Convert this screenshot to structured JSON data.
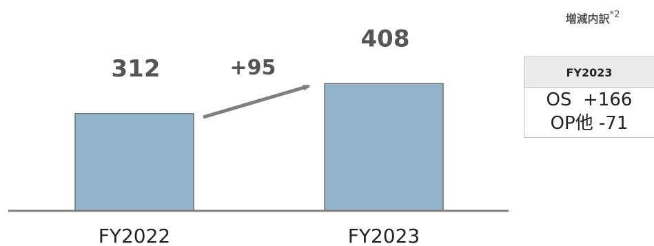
{
  "chart_data": {
    "type": "bar",
    "categories": [
      "FY2022",
      "FY2023"
    ],
    "values": [
      312,
      408
    ],
    "value_labels": [
      "312",
      "408"
    ],
    "delta_label": "+95",
    "title": "",
    "xlabel": "",
    "ylabel": "",
    "ylim": [
      0,
      475
    ],
    "grid": false,
    "legend": "none",
    "colors": {
      "bar": "#92B4CA",
      "bar_outline": "#707070",
      "axis": "#808080",
      "arrow": "#7F7F7F",
      "label_text": "#555555"
    }
  },
  "breakdown": {
    "title": "増減内訳",
    "note": "*2",
    "header": "FY2023",
    "rows": [
      {
        "name": "OS",
        "value": "+166"
      },
      {
        "name": "OP他",
        "value": "-71"
      }
    ]
  }
}
